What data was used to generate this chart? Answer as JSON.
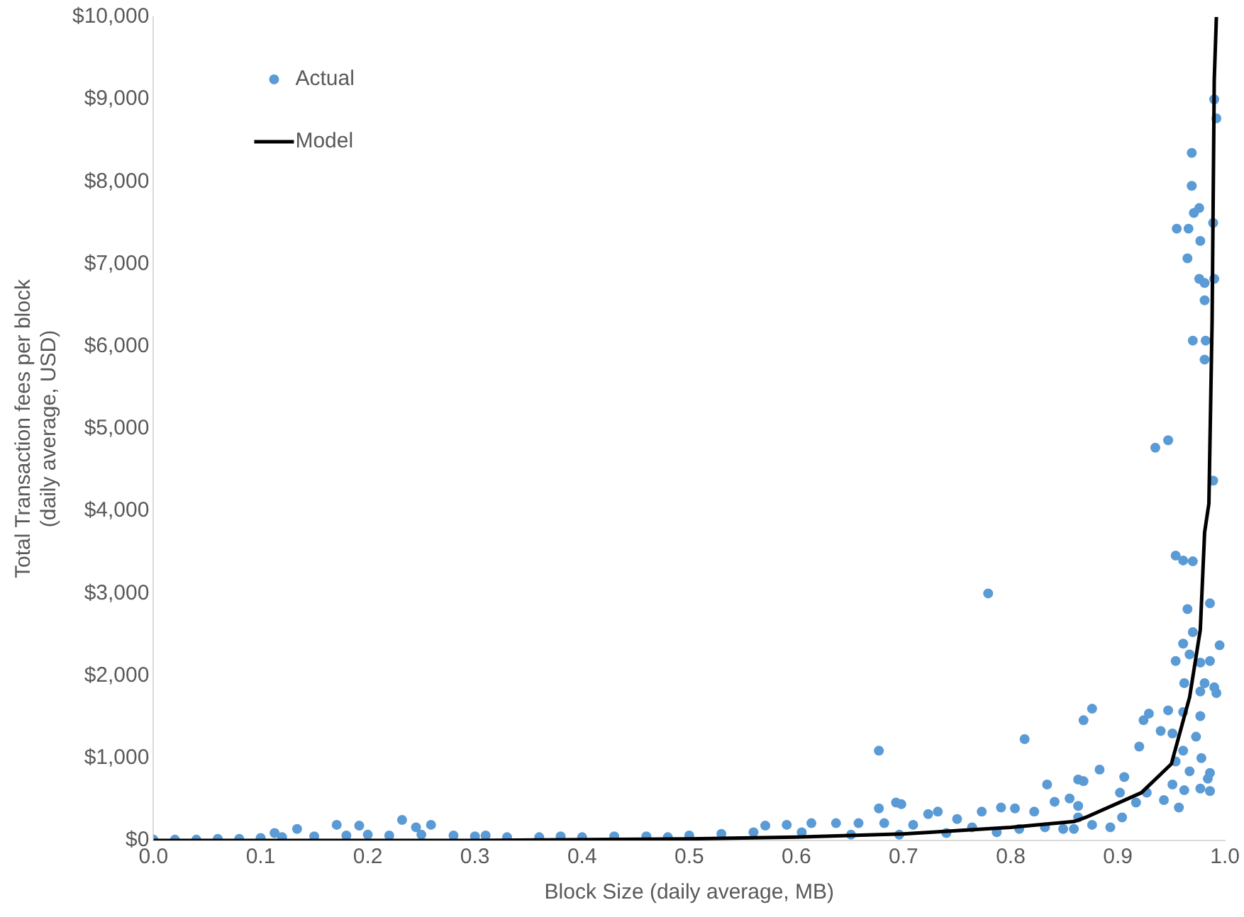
{
  "chart_data": {
    "type": "scatter",
    "xlabel": "Block Size (daily average, MB)",
    "ylabel": "Total Transaction fees per block (daily average, USD)",
    "xlim": [
      0,
      1
    ],
    "ylim": [
      0,
      10000
    ],
    "xticks": [
      {
        "value": 0,
        "label": "0.0"
      },
      0.1,
      0.2,
      0.3,
      0.4,
      0.5,
      0.6,
      0.7,
      0.8,
      0.9,
      {
        "value": 1,
        "label": "1.0"
      }
    ],
    "yticks": [
      {
        "value": 0,
        "label": "$0"
      },
      {
        "value": 1000,
        "label": "$1,000"
      },
      {
        "value": 2000,
        "label": "$2,000"
      },
      {
        "value": 3000,
        "label": "$3,000"
      },
      {
        "value": 4000,
        "label": "$4,000"
      },
      {
        "value": 5000,
        "label": "$5,000"
      },
      {
        "value": 6000,
        "label": "$6,000"
      },
      {
        "value": 7000,
        "label": "$7,000"
      },
      {
        "value": 8000,
        "label": "$8,000"
      },
      {
        "value": 9000,
        "label": "$9,000"
      },
      {
        "value": 10000,
        "label": "$10,000"
      }
    ],
    "grid": false,
    "legend": "top left",
    "series": [
      {
        "name": "Actual",
        "color": "#5b9bd5",
        "marker": "circle",
        "x": [
          0.99,
          0.992,
          0.969,
          0.969,
          0.976,
          0.971,
          0.989,
          0.955,
          0.966,
          0.977,
          0.965,
          0.976,
          0.981,
          0.99,
          0.981,
          0.97,
          0.982,
          0.981,
          0.947,
          0.935,
          0.989,
          0.954,
          0.961,
          0.97,
          0.965,
          0.986,
          0.995,
          0.961,
          0.97,
          0.954,
          0.967,
          0.977,
          0.986,
          0.962,
          0.981,
          0.99,
          0.992,
          0.977,
          0.961,
          0.977,
          0.929,
          0.924,
          0.947,
          0.94,
          0.951,
          0.973,
          0.92,
          0.961,
          0.978,
          0.954,
          0.967,
          0.986,
          0.984,
          0.951,
          0.962,
          0.977,
          0.986,
          0.957,
          0.943,
          0.927,
          0.906,
          0.883,
          0.876,
          0.868,
          0.868,
          0.902,
          0.917,
          0.904,
          0.893,
          0.876,
          0.863,
          0.863,
          0.779,
          0.677,
          0.813,
          0.834,
          0.863,
          0.677,
          0.693,
          0.698,
          0.732,
          0.773,
          0.791,
          0.804,
          0.822,
          0.841,
          0.855,
          0.723,
          0.75,
          0.637,
          0.614,
          0.591,
          0.571,
          0.658,
          0.682,
          0.709,
          0.764,
          0.808,
          0.832,
          0.849,
          0.605,
          0.651,
          0.696,
          0.74,
          0.787,
          0.859,
          0.171,
          0.192,
          0.232,
          0.245,
          0.259,
          0.134,
          0.113,
          0,
          0.02,
          0.04,
          0.06,
          0.08,
          0.1,
          0.12,
          0.15,
          0.18,
          0.2,
          0.22,
          0.25,
          0.28,
          0.3,
          0.31,
          0.33,
          0.36,
          0.38,
          0.4,
          0.43,
          0.46,
          0.48,
          0.5,
          0.53,
          0.56
        ],
        "values": [
          9000,
          8770,
          8350,
          7950,
          7680,
          7620,
          7500,
          7430,
          7430,
          7280,
          7070,
          6820,
          6770,
          6820,
          6560,
          6070,
          6070,
          5840,
          4860,
          4770,
          4370,
          3460,
          3400,
          3390,
          2810,
          2880,
          2370,
          2390,
          2530,
          2180,
          2260,
          2160,
          2180,
          1910,
          1910,
          1860,
          1790,
          1810,
          1560,
          1510,
          1540,
          1460,
          1580,
          1330,
          1300,
          1260,
          1140,
          1090,
          1000,
          960,
          840,
          820,
          750,
          680,
          610,
          630,
          600,
          400,
          490,
          580,
          770,
          860,
          1600,
          1460,
          720,
          580,
          460,
          280,
          160,
          190,
          280,
          420,
          3000,
          1090,
          1230,
          680,
          740,
          390,
          460,
          440,
          350,
          350,
          400,
          390,
          350,
          470,
          510,
          320,
          260,
          210,
          210,
          190,
          180,
          210,
          210,
          190,
          160,
          140,
          160,
          140,
          100,
          70,
          70,
          90,
          100,
          140,
          190,
          180,
          250,
          160,
          190,
          140,
          90,
          10,
          10,
          10,
          20,
          20,
          30,
          40,
          50,
          60,
          70,
          60,
          70,
          60,
          50,
          60,
          40,
          40,
          50,
          40,
          50,
          50,
          40,
          60,
          80,
          100
        ]
      },
      {
        "name": "Model",
        "type": "line",
        "color": "#000000",
        "marker": "none",
        "line_style": "solid",
        "x": [
          0,
          0.3,
          0.5,
          0.6,
          0.7,
          0.8,
          0.859,
          0.87,
          0.922,
          0.95,
          0.967,
          0.977,
          0.981,
          0.985,
          0.988,
          0.99,
          0.992
        ],
        "values": [
          0,
          0,
          20,
          40,
          80,
          160,
          230,
          280,
          580,
          930,
          1740,
          2560,
          3740,
          4090,
          6300,
          9230,
          10000
        ]
      }
    ]
  }
}
